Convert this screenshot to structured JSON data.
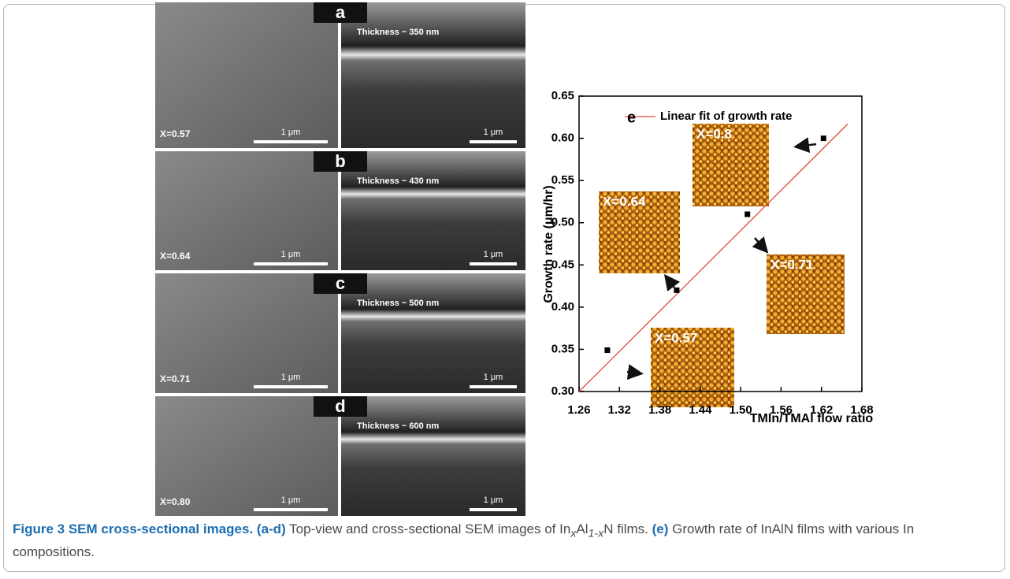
{
  "panels": [
    {
      "letter": "a",
      "thickness": "Thickness ~ 350 nm",
      "composition": "X=0.57",
      "scale_top": "1 μm",
      "scale_cross": "1 μm"
    },
    {
      "letter": "b",
      "thickness": "Thickness ~ 430 nm",
      "composition": "X=0.64",
      "scale_top": "1 μm",
      "scale_cross": "1 μm"
    },
    {
      "letter": "c",
      "thickness": "Thickness ~ 500 nm",
      "composition": "X=0.71",
      "scale_top": "1 μm",
      "scale_cross": "1 μm"
    },
    {
      "letter": "d",
      "thickness": "Thickness ~ 600 nm",
      "composition": "X=0.80",
      "scale_top": "1 μm",
      "scale_cross": "1 μm"
    }
  ],
  "chart_data": {
    "type": "scatter",
    "label": "e",
    "xlabel": "TMIn/TMAl flow ratio",
    "ylabel": "Growth rate (μm/hr)",
    "x": [
      1.302,
      1.405,
      1.51,
      1.623
    ],
    "series": [
      {
        "values": [
          0.349,
          0.42,
          0.51,
          0.6
        ],
        "color": "#000000"
      }
    ],
    "fit": {
      "name": "Linear fit of growth rate",
      "color": "#e0483c",
      "x": [
        1.26,
        1.659
      ],
      "values": [
        0.3,
        0.617
      ]
    },
    "insets": [
      {
        "label": "X=0.8"
      },
      {
        "label": "X=0.64"
      },
      {
        "label": "X=0.71"
      },
      {
        "label": "X=0.57"
      }
    ],
    "xlim": [
      1.26,
      1.68
    ],
    "ylim": [
      0.3,
      0.65
    ],
    "xticks": [
      1.26,
      1.32,
      1.38,
      1.44,
      {
        "value": 1.5,
        "label": "1.50"
      },
      1.56,
      1.62,
      1.68
    ],
    "yticks": [
      {
        "value": 0.3,
        "label": "0.30"
      },
      0.35,
      {
        "value": 0.4,
        "label": "0.40"
      },
      0.45,
      {
        "value": 0.5,
        "label": "0.50"
      },
      0.55,
      {
        "value": 0.6,
        "label": "0.60"
      },
      0.65
    ]
  },
  "caption": {
    "figure": "Figure 3 SEM cross-sectional images.",
    "part1": "(a-d)",
    "text1": "Top-view and cross-sectional SEM images of In",
    "sub1": "x",
    "text2": "Al",
    "sub2": "1-x",
    "text3": "N films.",
    "part2": "(e)",
    "text4": "Growth rate of InAlN films with various In compositions."
  }
}
